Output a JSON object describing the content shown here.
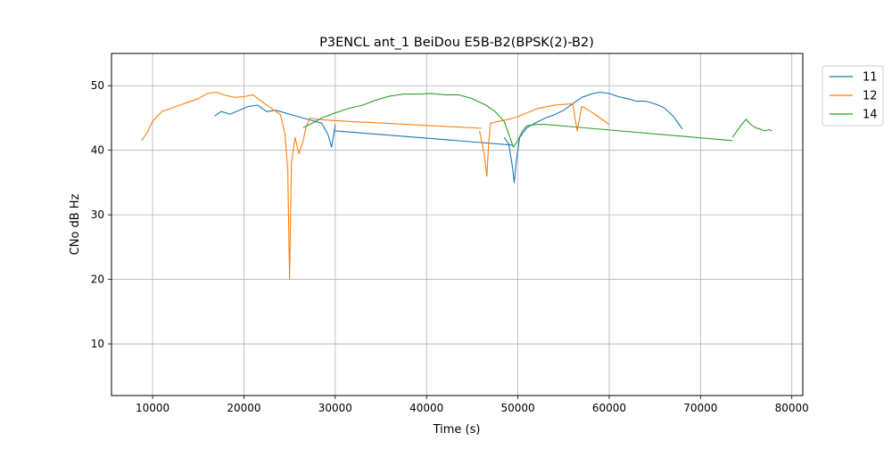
{
  "chart_data": {
    "type": "line",
    "title": "P3ENCL ant_1 BeiDou E5B-B2(BPSK(2)-B2)",
    "xlabel": "Time (s)",
    "ylabel": "CNo dB Hz",
    "xlim": [
      5500,
      81200
    ],
    "ylim": [
      2,
      55
    ],
    "xticks": [
      10000,
      20000,
      30000,
      40000,
      50000,
      60000,
      70000,
      80000
    ],
    "yticks": [
      10,
      20,
      30,
      40,
      50
    ],
    "grid": true,
    "legend_position": "outside top-right",
    "series": [
      {
        "name": "11",
        "color": "#1f77b4",
        "segments": [
          [
            [
              16800,
              45.3
            ],
            [
              17500,
              46.0
            ],
            [
              18500,
              45.6
            ],
            [
              19500,
              46.2
            ],
            [
              20500,
              46.8
            ],
            [
              21500,
              47.0
            ],
            [
              22500,
              46.0
            ],
            [
              23500,
              46.2
            ],
            [
              24500,
              45.8
            ],
            [
              25500,
              45.4
            ],
            [
              26500,
              45.0
            ],
            [
              27500,
              44.6
            ],
            [
              28500,
              44.2
            ],
            [
              29200,
              42.5
            ],
            [
              29600,
              40.5
            ],
            [
              29900,
              43.0
            ],
            [
              30000,
              44.0
            ]
          ],
          [
            [
              30000,
              43.0
            ],
            [
              49500,
              40.8
            ]
          ],
          [
            [
              48500,
              42.0
            ],
            [
              49000,
              41.0
            ],
            [
              49400,
              37.5
            ],
            [
              49600,
              35.0
            ],
            [
              49800,
              38.0
            ],
            [
              50200,
              42.0
            ],
            [
              51000,
              43.5
            ],
            [
              52000,
              44.3
            ],
            [
              53000,
              45.0
            ],
            [
              54000,
              45.5
            ],
            [
              55000,
              46.2
            ],
            [
              56000,
              47.2
            ],
            [
              57000,
              48.2
            ],
            [
              58000,
              48.7
            ],
            [
              59000,
              49.0
            ],
            [
              60000,
              48.8
            ],
            [
              61000,
              48.3
            ],
            [
              62000,
              48.0
            ],
            [
              63000,
              47.6
            ],
            [
              64000,
              47.6
            ],
            [
              65000,
              47.2
            ],
            [
              66000,
              46.6
            ],
            [
              67000,
              45.3
            ],
            [
              68000,
              43.3
            ]
          ]
        ]
      },
      {
        "name": "12",
        "color": "#ff7f0e",
        "segments": [
          [
            [
              8800,
              41.5
            ],
            [
              9300,
              42.5
            ],
            [
              10000,
              44.5
            ],
            [
              11000,
              46.0
            ],
            [
              12000,
              46.5
            ],
            [
              13000,
              47.0
            ],
            [
              14000,
              47.5
            ],
            [
              15000,
              48.0
            ],
            [
              16000,
              48.8
            ],
            [
              17000,
              49.0
            ],
            [
              18000,
              48.5
            ],
            [
              19000,
              48.2
            ],
            [
              20000,
              48.3
            ],
            [
              21000,
              48.6
            ],
            [
              22000,
              47.5
            ],
            [
              23000,
              46.5
            ],
            [
              24000,
              45.5
            ],
            [
              24500,
              42.5
            ],
            [
              24800,
              37.0
            ],
            [
              25000,
              20.0
            ],
            [
              25200,
              38.0
            ],
            [
              25600,
              42.0
            ],
            [
              26000,
              39.5
            ],
            [
              26400,
              41.0
            ],
            [
              26800,
              43.5
            ],
            [
              27200,
              45.0
            ],
            [
              28000,
              44.8
            ],
            [
              30000,
              44.6
            ]
          ],
          [
            [
              30000,
              44.6
            ],
            [
              46000,
              43.4
            ]
          ],
          [
            [
              45800,
              43.0
            ],
            [
              46300,
              39.5
            ],
            [
              46600,
              36.0
            ],
            [
              46800,
              41.0
            ],
            [
              47000,
              44.2
            ],
            [
              48000,
              44.5
            ],
            [
              49000,
              44.8
            ],
            [
              50000,
              45.2
            ],
            [
              51000,
              45.8
            ],
            [
              52000,
              46.4
            ],
            [
              53000,
              46.7
            ],
            [
              54000,
              47.0
            ],
            [
              55000,
              47.1
            ],
            [
              56000,
              47.2
            ],
            [
              56500,
              43.0
            ],
            [
              57000,
              46.8
            ],
            [
              58000,
              46.0
            ],
            [
              59000,
              45.0
            ],
            [
              60000,
              44.0
            ]
          ]
        ]
      },
      {
        "name": "14",
        "color": "#2ca02c",
        "segments": [
          [
            [
              26500,
              43.5
            ],
            [
              27500,
              44.2
            ],
            [
              28500,
              45.0
            ],
            [
              30000,
              45.8
            ],
            [
              31500,
              46.5
            ],
            [
              33000,
              47.0
            ],
            [
              34500,
              47.8
            ],
            [
              36000,
              48.4
            ],
            [
              37500,
              48.7
            ],
            [
              39000,
              48.7
            ],
            [
              40500,
              48.8
            ],
            [
              42000,
              48.6
            ],
            [
              43500,
              48.6
            ],
            [
              45000,
              48.0
            ],
            [
              46500,
              47.0
            ],
            [
              47500,
              46.0
            ],
            [
              48500,
              44.5
            ],
            [
              49000,
              42.5
            ],
            [
              49500,
              40.5
            ],
            [
              50000,
              41.5
            ],
            [
              50500,
              43.0
            ],
            [
              51000,
              43.8
            ],
            [
              52000,
              44.0
            ],
            [
              53000,
              44.0
            ]
          ],
          [
            [
              53000,
              44.0
            ],
            [
              73500,
              41.5
            ]
          ],
          [
            [
              73500,
              42.0
            ],
            [
              74000,
              43.0
            ],
            [
              74500,
              44.0
            ],
            [
              75000,
              44.8
            ],
            [
              75500,
              44.0
            ],
            [
              76000,
              43.5
            ],
            [
              76500,
              43.3
            ],
            [
              77000,
              43.0
            ],
            [
              77500,
              43.2
            ],
            [
              77800,
              43.0
            ]
          ]
        ]
      }
    ]
  }
}
